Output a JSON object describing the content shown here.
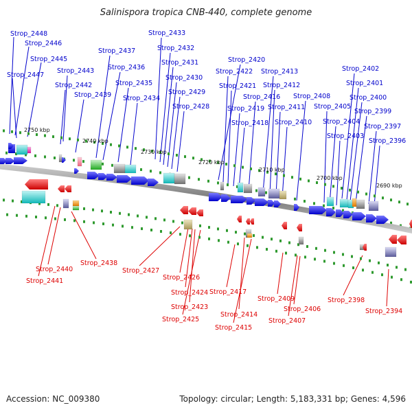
{
  "title": "Salinispora tropica CNB-440, complete genome",
  "footer": {
    "accession": "Accession: NC_009380",
    "summary": "Topology: circular; Length: 5,183,331 bp; Genes: 4,596"
  },
  "ticks": [
    "2750 kbp",
    "2740 kbp",
    "2730 kbp",
    "2720 kbp",
    "2710 kbp",
    "2700 kbp",
    "2690 kbp"
  ],
  "labels_top": [
    "Strop_2448",
    "Strop_2446",
    "Strop_2445",
    "Strop_2447",
    "Strop_2443",
    "Strop_2442",
    "Strop_2439",
    "Strop_2437",
    "Strop_2436",
    "Strop_2435",
    "Strop_2434",
    "Strop_2433",
    "Strop_2432",
    "Strop_2431",
    "Strop_2430",
    "Strop_2429",
    "Strop_2428",
    "Strop_2420",
    "Strop_2422",
    "Strop_2421",
    "Strop_2419",
    "Strop_2418",
    "Strop_2416",
    "Strop_2413",
    "Strop_2412",
    "Strop_2411",
    "Strop_2410",
    "Strop_2408",
    "Strop_2405",
    "Strop_2404",
    "Strop_2403",
    "Strop_2402",
    "Strop_2401",
    "Strop_2400",
    "Strop_2399",
    "Strop_2397",
    "Strop_2396"
  ],
  "labels_bottom": [
    "Strop_2440",
    "Strop_2441",
    "Strop_2438",
    "Strop_2427",
    "Strop_2426",
    "Strop_2424",
    "Strop_2423",
    "Strop_2425",
    "Strop_2417",
    "Strop_2414",
    "Strop_2415",
    "Strop_2409",
    "Strop_2407",
    "Strop_2406",
    "Strop_2398",
    "Strop_2394"
  ],
  "colors": {
    "forward_gene": "#1a1aee",
    "reverse_gene": "#ee1111",
    "backbone": "#8a8a8a",
    "leader_top": "#0000cc",
    "leader_bottom": "#dd0000",
    "feature_cyan": "#22cccc",
    "feature_green": "#33cc33",
    "feature_gray": "#888888",
    "feature_orange": "#ee8800",
    "feature_magenta": "#ee22aa",
    "feature_khaki": "#c8b870"
  }
}
